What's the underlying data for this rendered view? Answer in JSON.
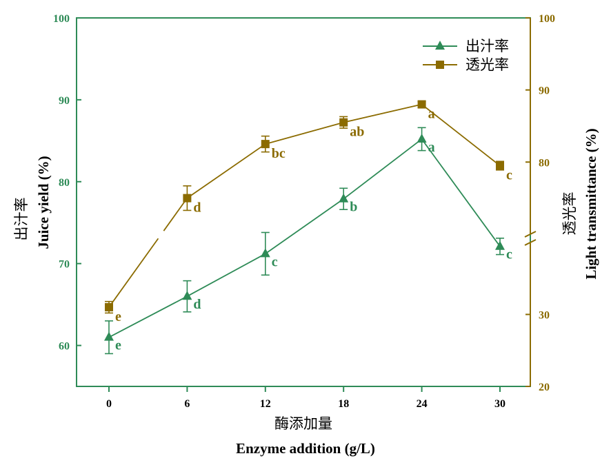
{
  "chart_data": {
    "type": "line",
    "x": [
      0,
      6,
      12,
      18,
      24,
      30
    ],
    "xlabel_cn": "酶添加量",
    "xlabel_en": "Enzyme addition (g/L)",
    "x_ticks": [
      "0",
      "6",
      "12",
      "18",
      "24",
      "30"
    ],
    "left_axis": {
      "label_cn": "出汁率",
      "label_en": "Juice yield (%)",
      "ylim": [
        55,
        100
      ],
      "ticks": [
        "60",
        "70",
        "80",
        "90",
        "100"
      ],
      "color": "#2e8b57"
    },
    "right_axis": {
      "label_cn": "透光率",
      "label_en": "Light transmittance (%)",
      "broken": true,
      "lower_range": [
        20,
        40
      ],
      "upper_range": [
        70,
        100
      ],
      "ticks": [
        "20",
        "30",
        "80",
        "90",
        "100"
      ],
      "color": "#8b6b00"
    },
    "series": [
      {
        "name": "出汁率",
        "axis": "left",
        "marker": "triangle",
        "color": "#2e8b57",
        "values": [
          61.0,
          66.0,
          71.2,
          77.9,
          85.2,
          72.1
        ],
        "errors": [
          2.0,
          1.9,
          2.6,
          1.3,
          1.4,
          1.0
        ],
        "sig": [
          "e",
          "d",
          "c",
          "b",
          "a",
          "c"
        ]
      },
      {
        "name": "透光率",
        "axis": "right",
        "marker": "square",
        "color": "#8b6b00",
        "values": [
          31.0,
          75.0,
          82.5,
          85.5,
          88.0,
          79.5
        ],
        "errors": [
          0.8,
          1.7,
          1.1,
          0.8,
          0.4,
          0.6
        ],
        "sig": [
          "e",
          "d",
          "bc",
          "ab",
          "a",
          "c"
        ]
      }
    ],
    "legend": [
      "出汁率",
      "透光率"
    ],
    "legend_position": "top-right"
  }
}
